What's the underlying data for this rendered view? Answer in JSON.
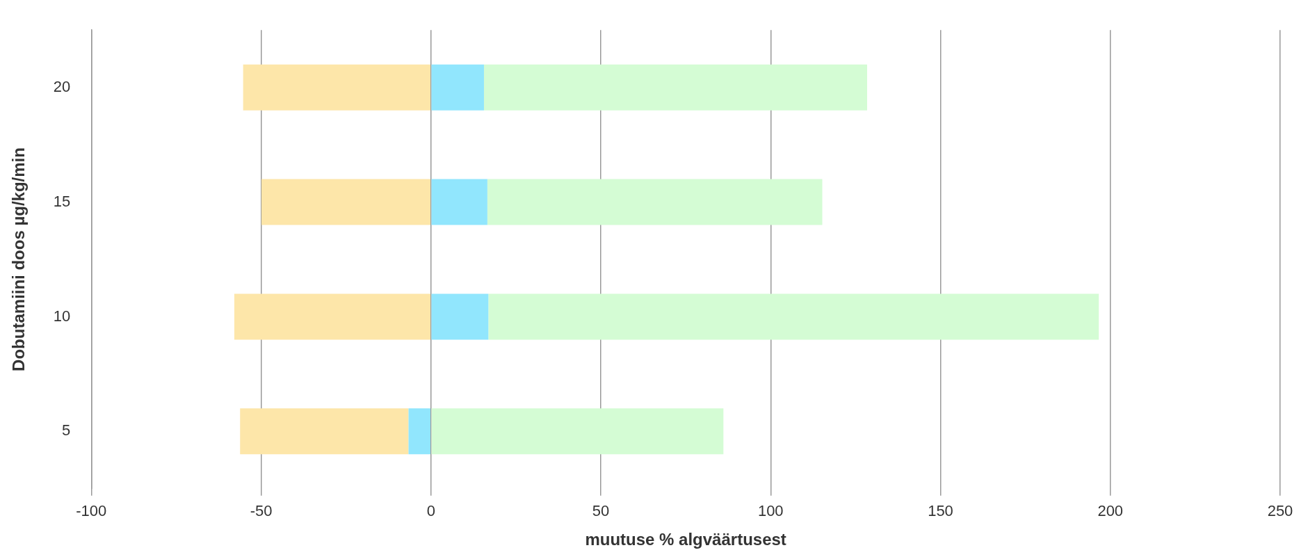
{
  "chart_data": {
    "type": "bar",
    "orientation": "horizontal",
    "stacked": true,
    "xlabel": "muutuse % algväärtusest",
    "ylabel": "Dobutamiini doos µg/kg/min",
    "categories": [
      "20",
      "15",
      "10",
      "5"
    ],
    "series": [
      {
        "color": "#91e6fd",
        "values": [
          15.6,
          16.6,
          16.9,
          -6.6
        ]
      },
      {
        "color": "#fde6a9",
        "values": [
          -55.3,
          -49.9,
          -57.9,
          -49.6
        ]
      },
      {
        "color": "#d4fcd4",
        "values": [
          112.8,
          98.6,
          179.7,
          86.1
        ]
      }
    ],
    "xlim": [
      -100,
      250
    ],
    "xticks": [
      -100,
      -50,
      0,
      50,
      100,
      150,
      200,
      250
    ],
    "grid": "x",
    "legend": false
  }
}
